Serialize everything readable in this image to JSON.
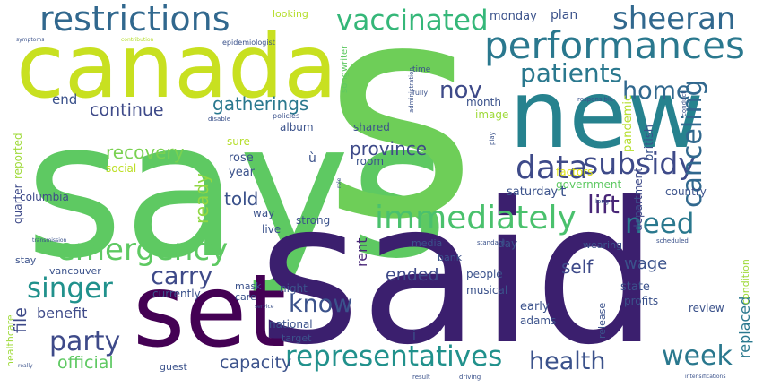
{
  "word_cloud": {
    "words": [
      {
        "text": "says",
        "color": "#5ec962"
      },
      {
        "text": "s",
        "color": "#6ece58"
      },
      {
        "text": "said",
        "color": "#3b1f6e"
      },
      {
        "text": "canada",
        "color": "#c8e020"
      },
      {
        "text": "new",
        "color": "#26828e"
      },
      {
        "text": "set",
        "color": "#440154"
      },
      {
        "text": "restrictions",
        "color": "#31688e"
      },
      {
        "text": "performances",
        "color": "#2a788e"
      },
      {
        "text": "sheeran",
        "color": "#31688e"
      },
      {
        "text": "vaccinated",
        "color": "#35b779"
      },
      {
        "text": "patients",
        "color": "#2a788e"
      },
      {
        "text": "immediately",
        "color": "#4ac16d"
      },
      {
        "text": "emergency",
        "color": "#5ec962"
      },
      {
        "text": "data",
        "color": "#3e4a89"
      },
      {
        "text": "subsidy",
        "color": "#3e4a89"
      },
      {
        "text": "canceling",
        "color": "#31688e"
      },
      {
        "text": "lift",
        "color": "#482677"
      },
      {
        "text": "need",
        "color": "#2a788e"
      },
      {
        "text": "home",
        "color": "#31688e"
      },
      {
        "text": "nov",
        "color": "#3e4a89"
      },
      {
        "text": "singer",
        "color": "#21918c"
      },
      {
        "text": "carry",
        "color": "#3e4a89"
      },
      {
        "text": "party",
        "color": "#3e4a89"
      },
      {
        "text": "know",
        "color": "#3b528b"
      },
      {
        "text": "representatives",
        "color": "#21918c"
      },
      {
        "text": "health",
        "color": "#3b528b"
      },
      {
        "text": "week",
        "color": "#2a788e"
      },
      {
        "text": "gatherings",
        "color": "#2a788e"
      },
      {
        "text": "continue",
        "color": "#3e4a89"
      },
      {
        "text": "end",
        "color": "#3b528b"
      },
      {
        "text": "province",
        "color": "#3e4a89"
      },
      {
        "text": "recovery",
        "color": "#7ad151"
      },
      {
        "text": "told",
        "color": "#3b528b"
      },
      {
        "text": "ready",
        "color": "#90d743"
      },
      {
        "text": "wage",
        "color": "#3b528b"
      },
      {
        "text": "self",
        "color": "#3e4a89"
      },
      {
        "text": "ended",
        "color": "#3e4a89"
      },
      {
        "text": "capacity",
        "color": "#3b528b"
      },
      {
        "text": "official",
        "color": "#5ec962"
      },
      {
        "text": "benefit",
        "color": "#3e4a89"
      },
      {
        "text": "file",
        "color": "#3e4a89"
      },
      {
        "text": "replaced",
        "color": "#2a788e"
      },
      {
        "text": "rent",
        "color": "#482677"
      },
      {
        "text": "monday",
        "color": "#3b528b"
      },
      {
        "text": "plan",
        "color": "#3b528b"
      },
      {
        "text": "month",
        "color": "#3b528b"
      },
      {
        "text": "image",
        "color": "#9fda3a"
      },
      {
        "text": "pandemic",
        "color": "#b5de2b"
      },
      {
        "text": "factors",
        "color": "#dde318"
      },
      {
        "text": "british",
        "color": "#3b528b"
      },
      {
        "text": "government",
        "color": "#5ec962"
      },
      {
        "text": "department",
        "color": "#3e4a89"
      },
      {
        "text": "condition",
        "color": "#9fda3a"
      },
      {
        "text": "saturday",
        "color": "#3b528b"
      },
      {
        "text": "country",
        "color": "#3b528b"
      },
      {
        "text": "shared",
        "color": "#3b528b"
      },
      {
        "text": "room",
        "color": "#3b528b"
      },
      {
        "text": "album",
        "color": "#3b528b"
      },
      {
        "text": "rose",
        "color": "#3b528b"
      },
      {
        "text": "year",
        "color": "#3b528b"
      },
      {
        "text": "sure",
        "color": "#b5de2b"
      },
      {
        "text": "social",
        "color": "#bddf26"
      },
      {
        "text": "reported",
        "color": "#9fda3a"
      },
      {
        "text": "quarter",
        "color": "#3e4a89"
      },
      {
        "text": "columbia",
        "color": "#3e4a89"
      },
      {
        "text": "way",
        "color": "#3b528b"
      },
      {
        "text": "live",
        "color": "#3b528b"
      },
      {
        "text": "strong",
        "color": "#3b528b"
      },
      {
        "text": "stay",
        "color": "#3b528b"
      },
      {
        "text": "vancouver",
        "color": "#3b528b"
      },
      {
        "text": "currently",
        "color": "#3b528b"
      },
      {
        "text": "night",
        "color": "#3b528b"
      },
      {
        "text": "mask",
        "color": "#3b528b"
      },
      {
        "text": "care",
        "color": "#3b528b"
      },
      {
        "text": "people",
        "color": "#3b528b"
      },
      {
        "text": "musical",
        "color": "#3b528b"
      },
      {
        "text": "early",
        "color": "#3b528b"
      },
      {
        "text": "adams",
        "color": "#3b528b"
      },
      {
        "text": "state",
        "color": "#3b528b"
      },
      {
        "text": "profits",
        "color": "#3b528b"
      },
      {
        "text": "review",
        "color": "#3b528b"
      },
      {
        "text": "release",
        "color": "#3b528b"
      },
      {
        "text": "national",
        "color": "#3b528b"
      },
      {
        "text": "target",
        "color": "#3b528b"
      },
      {
        "text": "guest",
        "color": "#3b528b"
      },
      {
        "text": "media",
        "color": "#3b528b"
      },
      {
        "text": "bank",
        "color": "#3b528b"
      },
      {
        "text": "day",
        "color": "#3b528b"
      },
      {
        "text": "wearing",
        "color": "#3b528b"
      },
      {
        "text": "t",
        "color": "#3b528b"
      },
      {
        "text": "ù",
        "color": "#3b528b"
      },
      {
        "text": "i",
        "color": "#3b528b"
      },
      {
        "text": "healthcare",
        "color": "#9fda3a"
      },
      {
        "text": "looking",
        "color": "#b5de2b"
      },
      {
        "text": "songwriter",
        "color": "#5ec962"
      },
      {
        "text": "time",
        "color": "#3b528b"
      },
      {
        "text": "fully",
        "color": "#3b528b"
      },
      {
        "text": "responsible",
        "color": "#3b528b"
      },
      {
        "text": "conduct",
        "color": "#3b528b"
      },
      {
        "text": "epidemiologist",
        "color": "#3b528b"
      },
      {
        "text": "administration",
        "color": "#3b528b"
      },
      {
        "text": "symptoms",
        "color": "#3b528b"
      },
      {
        "text": "contribution",
        "color": "#b5de2b"
      },
      {
        "text": "policies",
        "color": "#3b528b"
      },
      {
        "text": "disable",
        "color": "#3b528b"
      },
      {
        "text": "transmission",
        "color": "#3b528b"
      },
      {
        "text": "scheduled",
        "color": "#3b528b"
      },
      {
        "text": "standard",
        "color": "#3b528b"
      },
      {
        "text": "service",
        "color": "#3b528b"
      },
      {
        "text": "driving",
        "color": "#3b528b"
      },
      {
        "text": "result",
        "color": "#3b528b"
      },
      {
        "text": "really",
        "color": "#3b528b"
      },
      {
        "text": "intensifications",
        "color": "#3b528b"
      },
      {
        "text": "play",
        "color": "#3b528b"
      },
      {
        "text": "long",
        "color": "#3b528b"
      },
      {
        "text": "role",
        "color": "#3b528b"
      }
    ]
  }
}
